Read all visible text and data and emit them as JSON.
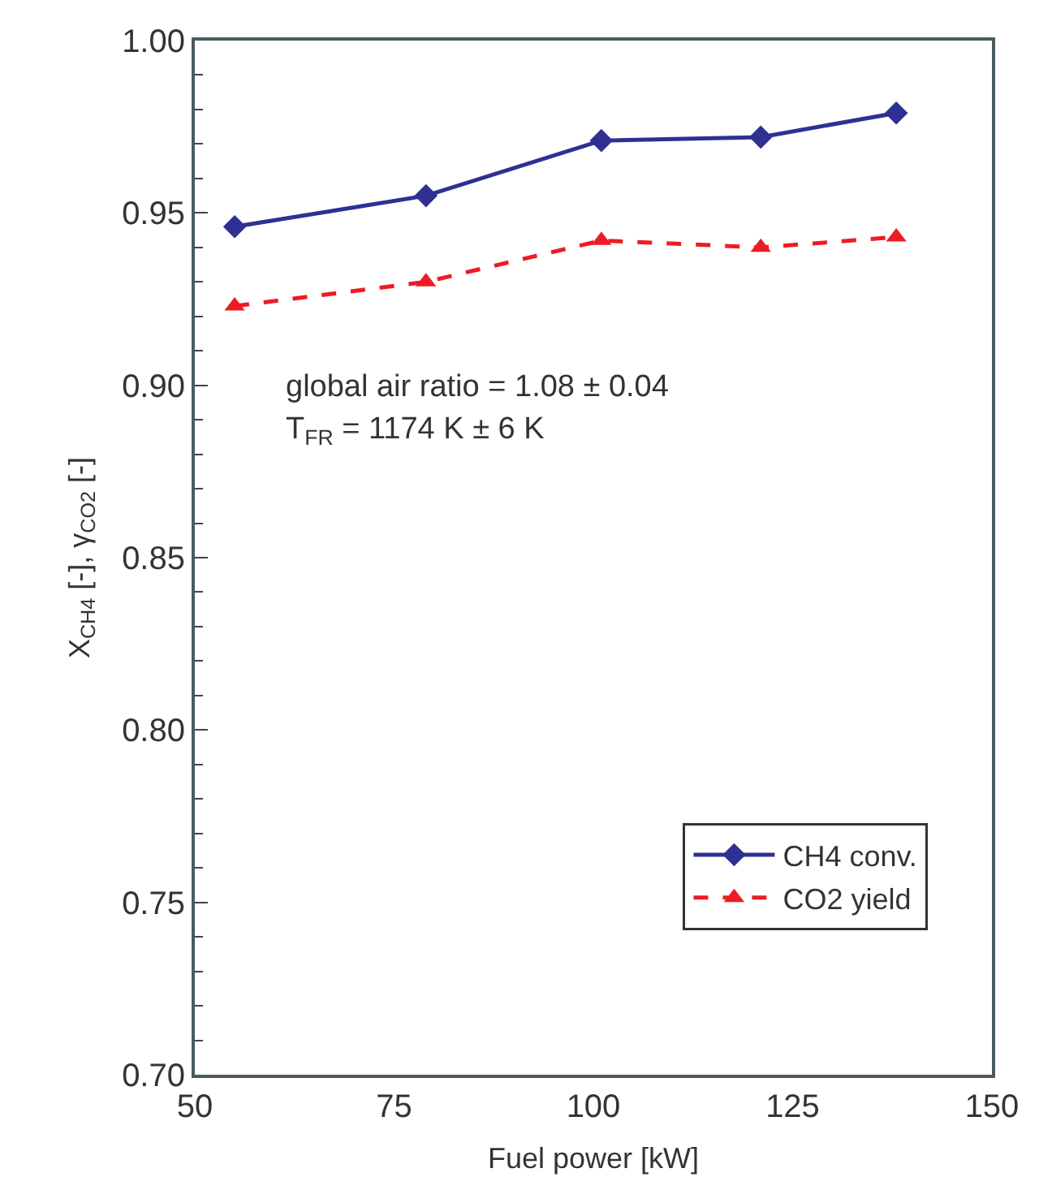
{
  "chart_data": {
    "type": "line",
    "xlabel": "Fuel power [kW]",
    "ylabel": "X$_{CH4}$ [-], γ$_{CO2}$ [-]",
    "x": [
      55,
      79,
      101,
      121,
      138
    ],
    "series": [
      {
        "name": "CH4 conv.",
        "color": "#2e3192",
        "values": [
          0.946,
          0.955,
          0.971,
          0.972,
          0.979
        ],
        "marker": "diamond",
        "line_style": "solid"
      },
      {
        "name": "CO2 yield",
        "color": "#ed1c24",
        "values": [
          0.923,
          0.93,
          0.942,
          0.94,
          0.943
        ],
        "marker": "triangle",
        "line_style": "dashed"
      }
    ],
    "xlim": [
      50,
      150
    ],
    "xticks": [
      50,
      75,
      100,
      125,
      150
    ],
    "ylim": [
      0.7,
      1.0
    ],
    "yticks": [
      {
        "value": 0.7,
        "label": "0.70"
      },
      {
        "value": 0.75,
        "label": "0.75"
      },
      {
        "value": 0.8,
        "label": "0.80"
      },
      {
        "value": 0.85,
        "label": "0.85"
      },
      {
        "value": 0.9,
        "label": "0.90"
      },
      {
        "value": 0.95,
        "label": "0.95"
      },
      {
        "value": 1.0,
        "label": "1.00"
      }
    ],
    "annotations": [
      "global air ratio = 1.08 ± 0.04",
      "T$_{FR}$ = 1174 K ± 6 K"
    ],
    "legend": "bottom right"
  }
}
